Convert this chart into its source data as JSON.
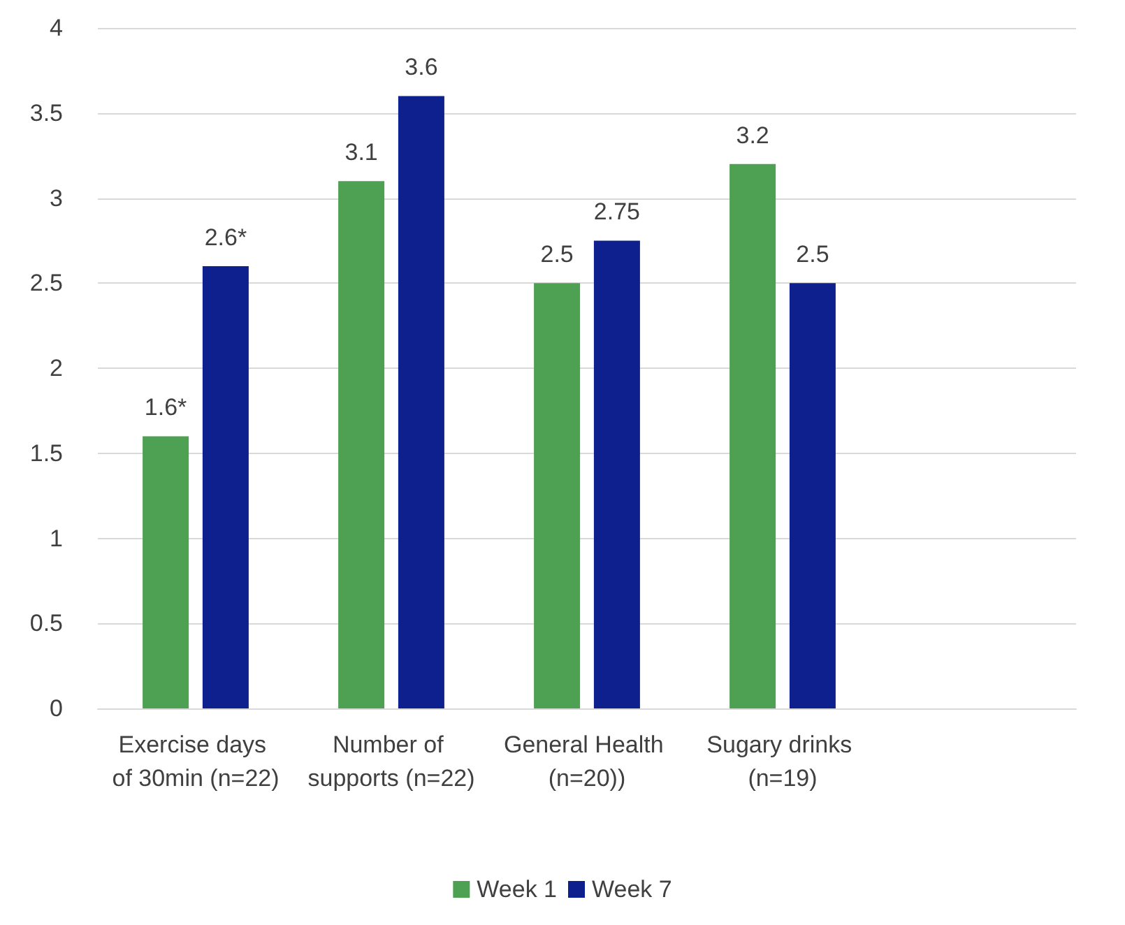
{
  "chart_data": {
    "type": "bar",
    "categories": [
      "Exercise days of 30min (n=22)",
      "Number of supports (n=22)",
      "General Health (n=20))",
      "Sugary drinks (n=19)",
      null
    ],
    "series": [
      {
        "name": "Week 1",
        "color": "#4ea052",
        "values": [
          1.6,
          3.1,
          2.5,
          3.2,
          null
        ],
        "value_labels": [
          "1.6*",
          "3.1",
          "2.5",
          "3.2",
          null
        ]
      },
      {
        "name": "Week 7",
        "color": "#0e1f8e",
        "values": [
          2.6,
          3.6,
          2.75,
          2.5,
          null
        ],
        "value_labels": [
          "2.6*",
          "3.6",
          "2.75",
          "2.5",
          null
        ]
      }
    ],
    "ylim": [
      0,
      4
    ],
    "yticks": [
      0,
      0.5,
      1,
      1.5,
      2,
      2.5,
      3,
      3.5,
      4
    ],
    "grid": "y",
    "legend": "bottom"
  }
}
